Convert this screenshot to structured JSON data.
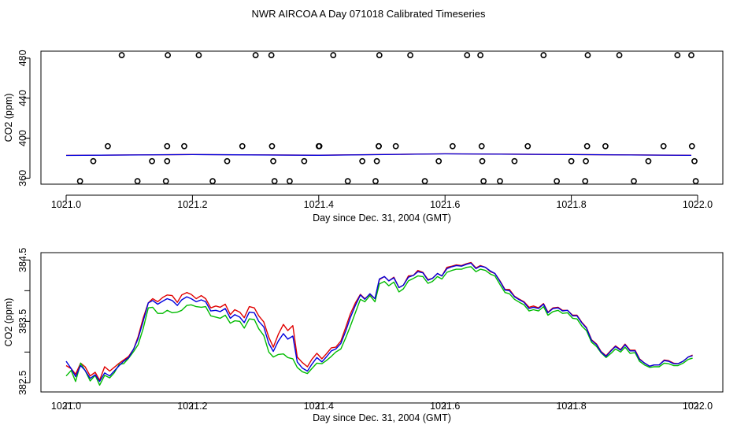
{
  "title": "NWR AIRCOA A  Day 071018  Calibrated Timeseries",
  "chart_data": [
    {
      "type": "scatter",
      "name": "top",
      "xlabel": "Day since Dec. 31, 2004 (GMT)",
      "ylabel": "CO2 (ppm)",
      "xlim": [
        1021.0,
        1022.0
      ],
      "ylim": [
        354,
        487
      ],
      "xticks": [
        1021.0,
        1021.2,
        1021.4,
        1021.6,
        1021.8,
        1022.0
      ],
      "xtick_labels": [
        "1021.0",
        "1021.2",
        "1021.4",
        "1021.6",
        "1021.8",
        "1022.0"
      ],
      "yticks": [
        360,
        400,
        440,
        480
      ],
      "ytick_labels": [
        "360",
        "400",
        "440",
        "480"
      ],
      "points_x": [
        1021.022,
        1021.043,
        1021.066,
        1021.088,
        1021.113,
        1021.136,
        1021.158,
        1021.16,
        1021.16,
        1021.161,
        1021.187,
        1021.21,
        1021.232,
        1021.255,
        1021.279,
        1021.3,
        1021.325,
        1021.326,
        1021.328,
        1021.33,
        1021.354,
        1021.377,
        1021.4,
        1021.401,
        1021.423,
        1021.446,
        1021.469,
        1021.49,
        1021.492,
        1021.495,
        1021.495,
        1021.496,
        1021.522,
        1021.545,
        1021.568,
        1021.59,
        1021.612,
        1021.635,
        1021.656,
        1021.658,
        1021.659,
        1021.661,
        1021.687,
        1021.71,
        1021.731,
        1021.756,
        1021.777,
        1021.8,
        1021.822,
        1021.823,
        1021.825,
        1021.826,
        1021.854,
        1021.876,
        1021.899,
        1021.922,
        1021.946,
        1021.968,
        1021.99,
        1021.991,
        1021.995,
        1021.997
      ],
      "points_y": [
        357,
        377,
        392,
        483,
        357,
        377,
        357,
        377,
        392,
        483,
        392,
        483,
        357,
        377,
        392,
        483,
        483,
        392,
        377,
        357,
        357,
        377,
        392,
        392,
        483,
        357,
        377,
        357,
        377,
        392,
        392,
        483,
        392,
        483,
        357,
        377,
        392,
        483,
        483,
        392,
        377,
        357,
        357,
        377,
        392,
        483,
        357,
        377,
        357,
        377,
        392,
        483,
        392,
        483,
        357,
        377,
        392,
        483,
        483,
        392,
        377,
        357
      ],
      "line_series": [
        {
          "name": "red",
          "color": "#e00000",
          "x": [
            1021.0,
            1021.2,
            1021.4,
            1021.6,
            1021.8,
            1021.99
          ],
          "values": [
            382.8,
            383.7,
            383.0,
            384.4,
            383.7,
            382.9
          ]
        },
        {
          "name": "blue",
          "color": "#0000dd",
          "x": [
            1021.0,
            1021.2,
            1021.4,
            1021.6,
            1021.8,
            1021.99
          ],
          "values": [
            382.7,
            383.6,
            382.9,
            384.3,
            383.6,
            382.8
          ]
        }
      ]
    },
    {
      "type": "line",
      "name": "bottom",
      "xlabel": "Day since Dec. 31, 2004 (GMT)",
      "ylabel": "CO2 (ppm)",
      "xlim": [
        1021.0,
        1022.0
      ],
      "ylim": [
        382.35,
        384.62
      ],
      "xticks": [
        1021.0,
        1021.2,
        1021.4,
        1021.6,
        1021.8,
        1022.0
      ],
      "xtick_labels": [
        "1021.0",
        "1021.2",
        "1021.4",
        "1021.6",
        "1021.8",
        "1022.0"
      ],
      "yticks": [
        382.5,
        383.0,
        383.5,
        384.0,
        384.5
      ],
      "ytick_labels": [
        "382.5",
        "",
        "383.5",
        "",
        "384.5"
      ],
      "x": [
        1021.0,
        1021.008,
        1021.015,
        1021.023,
        1021.03,
        1021.038,
        1021.046,
        1021.053,
        1021.061,
        1021.069,
        1021.076,
        1021.084,
        1021.091,
        1021.099,
        1021.107,
        1021.114,
        1021.122,
        1021.13,
        1021.137,
        1021.145,
        1021.153,
        1021.16,
        1021.168,
        1021.176,
        1021.183,
        1021.191,
        1021.198,
        1021.206,
        1021.214,
        1021.221,
        1021.229,
        1021.237,
        1021.244,
        1021.252,
        1021.26,
        1021.267,
        1021.275,
        1021.282,
        1021.29,
        1021.298,
        1021.305,
        1021.313,
        1021.321,
        1021.328,
        1021.336,
        1021.344,
        1021.351,
        1021.359,
        1021.366,
        1021.374,
        1021.382,
        1021.389,
        1021.397,
        1021.405,
        1021.412,
        1021.42,
        1021.427,
        1021.435,
        1021.443,
        1021.45,
        1021.458,
        1021.466,
        1021.473,
        1021.481,
        1021.489,
        1021.496,
        1021.504,
        1021.511,
        1021.519,
        1021.527,
        1021.534,
        1021.542,
        1021.55,
        1021.557,
        1021.565,
        1021.573,
        1021.58,
        1021.588,
        1021.595,
        1021.603,
        1021.611,
        1021.618,
        1021.626,
        1021.634,
        1021.641,
        1021.649,
        1021.656,
        1021.664,
        1021.672,
        1021.679,
        1021.687,
        1021.695,
        1021.702,
        1021.71,
        1021.718,
        1021.725,
        1021.733,
        1021.74,
        1021.748,
        1021.756,
        1021.763,
        1021.771,
        1021.779,
        1021.786,
        1021.794,
        1021.802,
        1021.809,
        1021.817,
        1021.824,
        1021.832,
        1021.84,
        1021.847,
        1021.855,
        1021.863,
        1021.87,
        1021.878,
        1021.885,
        1021.893,
        1021.901,
        1021.908,
        1021.916,
        1021.924,
        1021.931,
        1021.939,
        1021.947,
        1021.954,
        1021.962,
        1021.969,
        1021.977,
        1021.985,
        1021.992
      ],
      "series": [
        {
          "name": "red",
          "color": "#e00000",
          "values": [
            382.78,
            382.73,
            382.64,
            382.82,
            382.76,
            382.61,
            382.67,
            382.54,
            382.76,
            382.69,
            382.75,
            382.82,
            382.87,
            382.93,
            383.05,
            383.25,
            383.55,
            383.8,
            383.87,
            383.82,
            383.89,
            383.93,
            383.92,
            383.81,
            383.93,
            383.97,
            383.94,
            383.87,
            383.92,
            383.87,
            383.72,
            383.75,
            383.73,
            383.78,
            383.61,
            383.69,
            383.65,
            383.56,
            383.74,
            383.72,
            383.59,
            383.49,
            383.24,
            383.08,
            383.29,
            383.45,
            383.35,
            383.43,
            382.92,
            382.83,
            382.76,
            382.88,
            382.98,
            382.89,
            382.97,
            383.07,
            383.08,
            383.18,
            383.41,
            383.62,
            383.8,
            383.94,
            383.87,
            383.94,
            383.87,
            384.18,
            384.23,
            384.16,
            384.22,
            384.05,
            384.09,
            384.24,
            384.25,
            384.33,
            384.3,
            384.18,
            384.2,
            384.28,
            384.24,
            384.38,
            384.4,
            384.42,
            384.41,
            384.44,
            384.46,
            384.37,
            384.41,
            384.38,
            384.31,
            384.28,
            384.16,
            384.02,
            384.02,
            383.91,
            383.86,
            383.82,
            383.73,
            383.75,
            383.72,
            383.79,
            383.65,
            383.72,
            383.73,
            383.68,
            383.68,
            383.6,
            383.6,
            383.48,
            383.4,
            383.2,
            383.13,
            383.01,
            382.94,
            383.03,
            383.1,
            383.04,
            383.13,
            383.03,
            383.03,
            382.89,
            382.82,
            382.77,
            382.79,
            382.79,
            382.87,
            382.86,
            382.82,
            382.81,
            382.85,
            382.92,
            382.95
          ]
        },
        {
          "name": "green",
          "color": "#00bb00",
          "values": [
            382.61,
            382.7,
            382.52,
            382.82,
            382.7,
            382.53,
            382.62,
            382.46,
            382.62,
            382.58,
            382.66,
            382.8,
            382.81,
            382.9,
            383.01,
            383.12,
            383.38,
            383.72,
            383.73,
            383.63,
            383.63,
            383.68,
            383.64,
            383.65,
            383.68,
            383.76,
            383.77,
            383.74,
            383.73,
            383.74,
            383.59,
            383.57,
            383.55,
            383.6,
            383.47,
            383.51,
            383.5,
            383.39,
            383.54,
            383.53,
            383.38,
            383.27,
            383.0,
            382.92,
            382.96,
            382.97,
            382.91,
            382.89,
            382.75,
            382.68,
            382.65,
            382.73,
            382.82,
            382.81,
            382.86,
            382.93,
            383.0,
            383.05,
            383.24,
            383.42,
            383.64,
            383.86,
            383.82,
            383.92,
            383.82,
            384.11,
            384.15,
            384.08,
            384.14,
            383.98,
            384.03,
            384.16,
            384.2,
            384.24,
            384.23,
            384.12,
            384.15,
            384.23,
            384.19,
            384.3,
            384.33,
            384.35,
            384.35,
            384.38,
            384.39,
            384.31,
            384.35,
            384.33,
            384.27,
            384.24,
            384.1,
            383.97,
            383.95,
            383.86,
            383.81,
            383.77,
            383.67,
            383.69,
            383.67,
            383.74,
            383.6,
            383.66,
            383.68,
            383.63,
            383.64,
            383.55,
            383.54,
            383.42,
            383.35,
            383.16,
            383.09,
            382.99,
            382.91,
            382.98,
            383.05,
            383.0,
            383.08,
            382.98,
            382.99,
            382.85,
            382.79,
            382.75,
            382.76,
            382.76,
            382.82,
            382.81,
            382.78,
            382.78,
            382.82,
            382.88,
            382.9
          ]
        },
        {
          "name": "blue",
          "color": "#0000dd",
          "values": [
            382.85,
            382.73,
            382.6,
            382.78,
            382.7,
            382.57,
            382.63,
            382.52,
            382.66,
            382.61,
            382.69,
            382.78,
            382.85,
            382.91,
            383.05,
            383.22,
            383.5,
            383.8,
            383.84,
            383.78,
            383.83,
            383.87,
            383.84,
            383.76,
            383.85,
            383.9,
            383.87,
            383.82,
            383.85,
            383.82,
            383.67,
            383.68,
            383.66,
            383.71,
            383.55,
            383.61,
            383.57,
            383.48,
            383.65,
            383.64,
            383.5,
            383.41,
            383.14,
            383.01,
            383.18,
            383.3,
            383.21,
            383.26,
            382.84,
            382.74,
            382.69,
            382.8,
            382.91,
            382.84,
            382.92,
            383.02,
            383.05,
            383.14,
            383.35,
            383.56,
            383.76,
            383.93,
            383.86,
            383.95,
            383.87,
            384.19,
            384.23,
            384.16,
            384.21,
            384.05,
            384.09,
            384.22,
            384.25,
            384.31,
            384.29,
            384.17,
            384.2,
            384.28,
            384.24,
            384.36,
            384.39,
            384.41,
            384.4,
            384.43,
            384.45,
            384.36,
            384.4,
            384.38,
            384.32,
            384.28,
            384.15,
            384.01,
            384.0,
            383.9,
            383.85,
            383.81,
            383.71,
            383.73,
            383.71,
            383.78,
            383.64,
            383.71,
            383.72,
            383.67,
            383.68,
            383.59,
            383.59,
            383.47,
            383.39,
            383.19,
            383.12,
            383.0,
            382.93,
            383.02,
            383.09,
            383.03,
            383.12,
            383.02,
            383.02,
            382.88,
            382.82,
            382.77,
            382.79,
            382.79,
            382.86,
            382.85,
            382.81,
            382.81,
            382.85,
            382.92,
            382.94
          ]
        }
      ]
    }
  ]
}
